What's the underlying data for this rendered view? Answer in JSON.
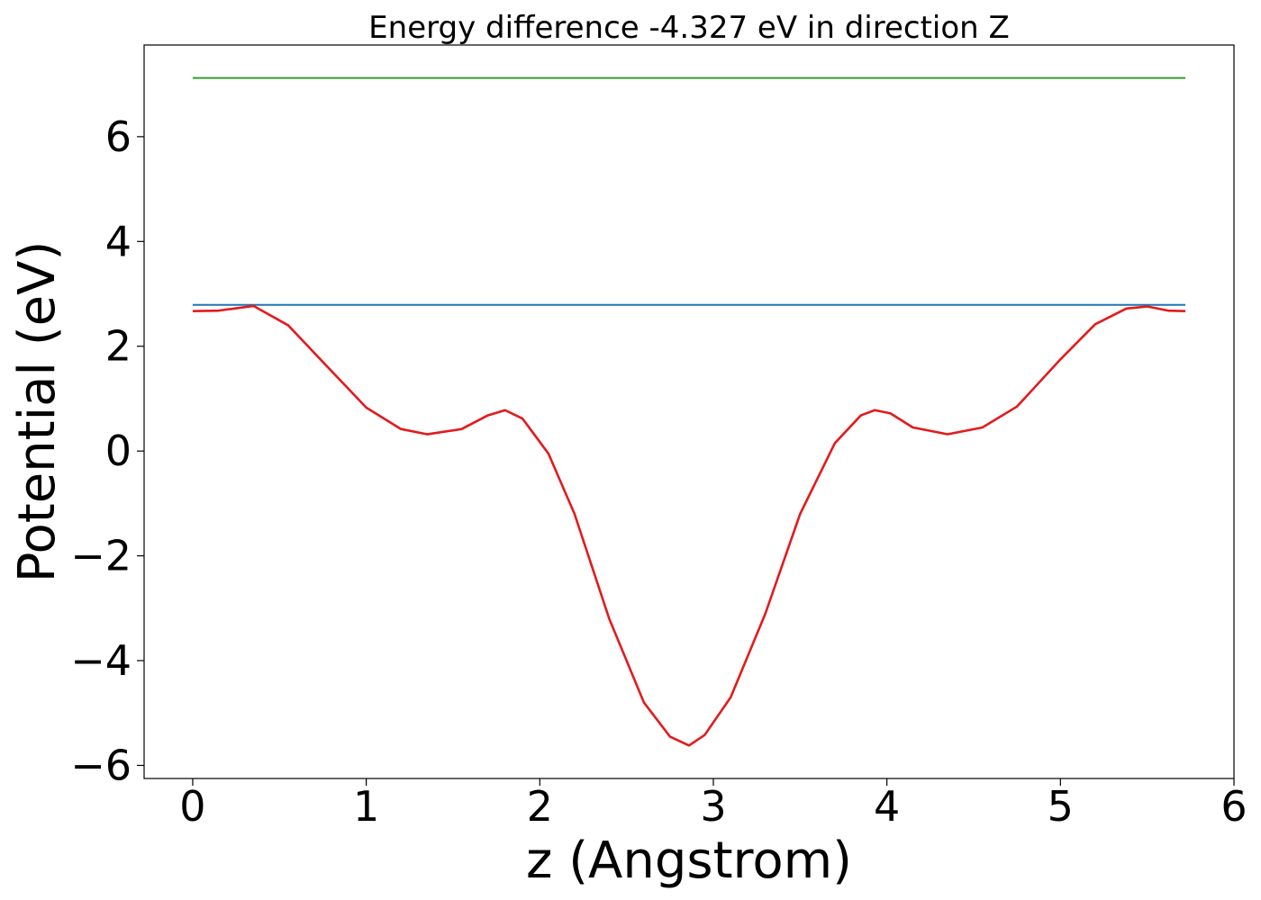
{
  "chart_data": {
    "type": "line",
    "title": "Energy difference -4.327 eV in direction Z",
    "xlabel": "z (Angstrom)",
    "ylabel": "Potential (eV)",
    "xlim": [
      -0.28,
      6.0
    ],
    "ylim": [
      -6.25,
      7.75
    ],
    "xticks": [
      0,
      1,
      2,
      3,
      4,
      5,
      6
    ],
    "xtick_labels": [
      "0",
      "1",
      "2",
      "3",
      "4",
      "5",
      "6"
    ],
    "yticks": [
      -6,
      -4,
      -2,
      0,
      2,
      4,
      6
    ],
    "ytick_labels": [
      "−6",
      "−4",
      "−2",
      "0",
      "2",
      "4",
      "6"
    ],
    "grid": false,
    "series": [
      {
        "color": "#2ca02c",
        "x": [
          0,
          5.72
        ],
        "y": [
          7.12,
          7.12
        ]
      },
      {
        "color": "#1f77b4",
        "x": [
          0,
          5.72
        ],
        "y": [
          2.79,
          2.79
        ]
      },
      {
        "color": "#e31a1c",
        "x": [
          0,
          0.15,
          0.35,
          0.55,
          0.75,
          1.0,
          1.2,
          1.35,
          1.55,
          1.7,
          1.8,
          1.9,
          2.05,
          2.2,
          2.4,
          2.6,
          2.75,
          2.86,
          2.95,
          3.1,
          3.3,
          3.5,
          3.7,
          3.85,
          3.93,
          4.02,
          4.15,
          4.35,
          4.55,
          4.75,
          5.0,
          5.2,
          5.38,
          5.5,
          5.62,
          5.72
        ],
        "y": [
          2.67,
          2.68,
          2.77,
          2.4,
          1.7,
          0.83,
          0.42,
          0.32,
          0.42,
          0.68,
          0.78,
          0.62,
          -0.05,
          -1.2,
          -3.2,
          -4.8,
          -5.45,
          -5.62,
          -5.42,
          -4.7,
          -3.1,
          -1.2,
          0.15,
          0.68,
          0.78,
          0.72,
          0.45,
          0.32,
          0.45,
          0.85,
          1.75,
          2.42,
          2.72,
          2.76,
          2.68,
          2.67
        ]
      }
    ]
  }
}
